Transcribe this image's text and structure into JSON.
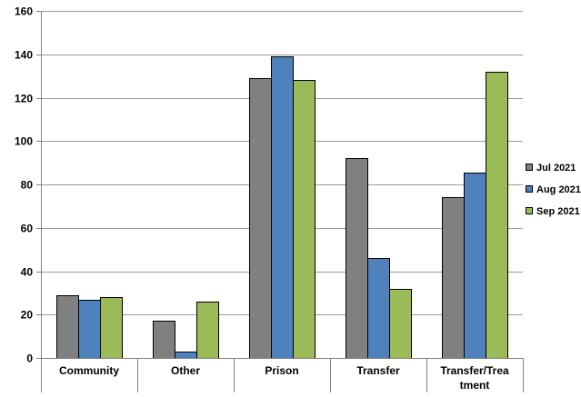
{
  "chart_data": {
    "type": "bar",
    "title": "",
    "xlabel": "",
    "ylabel": "",
    "categories": [
      [
        "Community"
      ],
      [
        "Other"
      ],
      [
        "Prison"
      ],
      [
        "Transfer"
      ],
      [
        "Transfer/Trea",
        "tment"
      ]
    ],
    "series": [
      {
        "name": "Jul 2021",
        "color": "#808080",
        "values": [
          29,
          17,
          129,
          92,
          74
        ]
      },
      {
        "name": "Aug 2021",
        "color": "#4f81bd",
        "values": [
          27,
          3,
          139,
          46,
          85.5
        ]
      },
      {
        "name": "Sep 2021",
        "color": "#9bbb59",
        "values": [
          28,
          26,
          128,
          32,
          132
        ]
      }
    ],
    "ylim": [
      0,
      160
    ],
    "yticks": [
      0,
      20,
      40,
      60,
      80,
      100,
      120,
      140,
      160
    ],
    "grid": true,
    "legend": "right"
  }
}
